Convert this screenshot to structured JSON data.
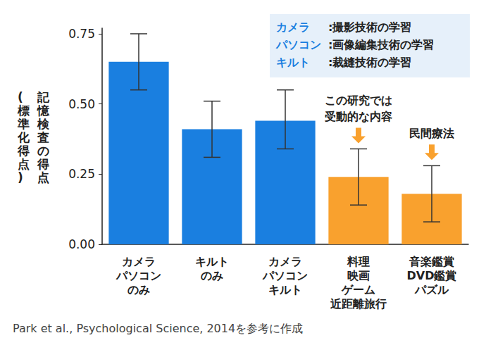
{
  "chart_data": {
    "type": "bar",
    "y_label": [
      "記憶検査の得点",
      "(標準化得点)"
    ],
    "categories": [
      "カメラ\nパソコン\nのみ",
      "キルト\nのみ",
      "カメラ\nパソコン\nキルト",
      "料理\n映画\nゲーム\n近距離旅行",
      "音楽鑑賞\nDVD鑑賞\nパズル"
    ],
    "values": [
      0.65,
      0.41,
      0.44,
      0.24,
      0.18
    ],
    "error_low": [
      0.55,
      0.31,
      0.34,
      0.14,
      0.08
    ],
    "error_high": [
      0.75,
      0.51,
      0.55,
      0.34,
      0.28
    ],
    "colors": [
      "#1a7fe0",
      "#1a7fe0",
      "#1a7fe0",
      "#f9a12e",
      "#f9a12e"
    ],
    "ylim": [
      0,
      0.77
    ],
    "yticks": [
      {
        "value": 0,
        "label": "0.00"
      },
      0.25,
      {
        "value": 0.5,
        "label": "0.50"
      },
      0.75
    ],
    "grid": false,
    "key": [
      {
        "term": "カメラ",
        "text": ":撮影技術の学習"
      },
      {
        "term": "パソコン",
        "text": ":画像編集技術の学習"
      },
      {
        "term": "キルト",
        "text": ":裁縫技術の学習"
      }
    ],
    "annotations": [
      {
        "category": "料理\n映画\nゲーム\n近距離旅行",
        "text": "この研究では\n受動的な内容"
      },
      {
        "category": "音楽鑑賞\nDVD鑑賞\nパズル",
        "text": "民間療法"
      }
    ],
    "source": "Park et al., Psychological Science, 2014を参考に作成"
  }
}
